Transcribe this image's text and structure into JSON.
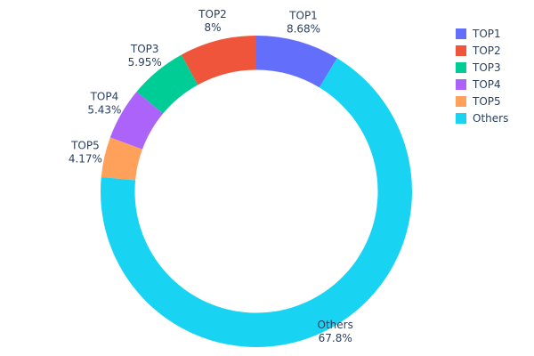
{
  "chart_data": {
    "type": "pie",
    "subtype": "donut",
    "hole": 0.78,
    "labels": [
      "TOP1",
      "TOP2",
      "TOP3",
      "TOP4",
      "TOP5",
      "Others"
    ],
    "values": [
      8.68,
      8,
      5.95,
      5.43,
      4.17,
      67.8
    ],
    "percent_labels": [
      "8.68%",
      "8%",
      "5.95%",
      "5.43%",
      "4.17%",
      "67.8%"
    ],
    "colors": [
      "#636EFA",
      "#EF553B",
      "#00CC96",
      "#AB63FA",
      "#FFA15A",
      "#19D3F3"
    ],
    "title": "",
    "legend_position": "top-right",
    "legend_entries": [
      "TOP1",
      "TOP2",
      "TOP3",
      "TOP4",
      "TOP5",
      "Others"
    ],
    "text_color": "#2a3f5f",
    "background": "#ffffff",
    "label_placement": "outside"
  }
}
